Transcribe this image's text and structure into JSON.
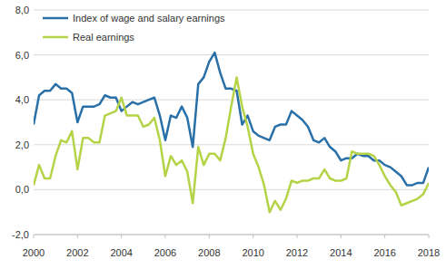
{
  "chart_data": {
    "type": "line",
    "x": [
      2000,
      2000.25,
      2000.5,
      2000.75,
      2001,
      2001.25,
      2001.5,
      2001.75,
      2002,
      2002.25,
      2002.5,
      2002.75,
      2003,
      2003.25,
      2003.5,
      2003.75,
      2004,
      2004.25,
      2004.5,
      2004.75,
      2005,
      2005.25,
      2005.5,
      2005.75,
      2006,
      2006.25,
      2006.5,
      2006.75,
      2007,
      2007.25,
      2007.5,
      2007.75,
      2008,
      2008.25,
      2008.5,
      2008.75,
      2009,
      2009.25,
      2009.5,
      2009.75,
      2010,
      2010.25,
      2010.5,
      2010.75,
      2011,
      2011.25,
      2011.5,
      2011.75,
      2012,
      2012.25,
      2012.5,
      2012.75,
      2013,
      2013.25,
      2013.5,
      2013.75,
      2014,
      2014.25,
      2014.5,
      2014.75,
      2015,
      2015.25,
      2015.5,
      2015.75,
      2016,
      2016.25,
      2016.5,
      2016.75,
      2017,
      2017.25,
      2017.5,
      2017.75,
      2018
    ],
    "series": [
      {
        "name": "Index of wage and salary earnings",
        "color": "#2a70a8",
        "values": [
          2.9,
          4.2,
          4.4,
          4.4,
          4.7,
          4.5,
          4.5,
          4.3,
          3.0,
          3.7,
          3.7,
          3.7,
          3.8,
          4.2,
          4.1,
          4.1,
          3.5,
          3.7,
          3.9,
          3.8,
          3.9,
          4.0,
          4.1,
          3.3,
          2.2,
          3.3,
          3.2,
          3.7,
          3.2,
          1.9,
          4.7,
          5.0,
          5.7,
          6.1,
          5.2,
          4.5,
          4.5,
          4.4,
          2.9,
          3.3,
          2.6,
          2.4,
          2.3,
          2.2,
          2.8,
          2.9,
          2.9,
          3.5,
          3.3,
          3.1,
          2.8,
          2.2,
          2.1,
          2.3,
          1.9,
          1.7,
          1.3,
          1.4,
          1.4,
          1.6,
          1.5,
          1.5,
          1.3,
          1.3,
          1.1,
          1.0,
          0.8,
          0.6,
          0.2,
          0.2,
          0.3,
          0.3,
          1.0
        ]
      },
      {
        "name": "Real earnings",
        "color": "#b4d347",
        "values": [
          0.2,
          1.1,
          0.5,
          0.5,
          1.5,
          2.2,
          2.1,
          2.6,
          0.9,
          2.3,
          2.3,
          2.1,
          2.1,
          3.3,
          3.4,
          3.5,
          4.1,
          3.3,
          3.3,
          3.3,
          2.8,
          2.9,
          3.2,
          2.2,
          0.6,
          1.5,
          1.1,
          1.3,
          0.8,
          -0.6,
          1.9,
          1.1,
          1.6,
          1.6,
          1.3,
          2.3,
          3.7,
          5.0,
          3.7,
          2.8,
          1.6,
          1.0,
          0.2,
          -1.0,
          -0.5,
          -0.9,
          -0.4,
          0.4,
          0.3,
          0.4,
          0.4,
          0.5,
          0.5,
          0.9,
          0.5,
          0.4,
          0.4,
          0.5,
          1.7,
          1.6,
          1.6,
          1.6,
          1.5,
          1.1,
          0.6,
          0.2,
          -0.1,
          -0.7,
          -0.6,
          -0.5,
          -0.4,
          -0.2,
          0.3
        ]
      }
    ],
    "xlim": [
      2000,
      2018
    ],
    "xticks": [
      2000,
      2002,
      2004,
      2006,
      2008,
      2010,
      2012,
      2014,
      2016,
      2018
    ],
    "ylim": [
      -2,
      8
    ],
    "yticks": [
      {
        "value": -2,
        "label": "-2,0"
      },
      {
        "value": 0,
        "label": "0,0"
      },
      {
        "value": 2,
        "label": "2,0"
      },
      {
        "value": 4,
        "label": "4,0"
      },
      {
        "value": 6,
        "label": "6,0"
      },
      {
        "value": 8,
        "label": "8,0"
      }
    ],
    "grid": true,
    "legend": "top-left"
  }
}
